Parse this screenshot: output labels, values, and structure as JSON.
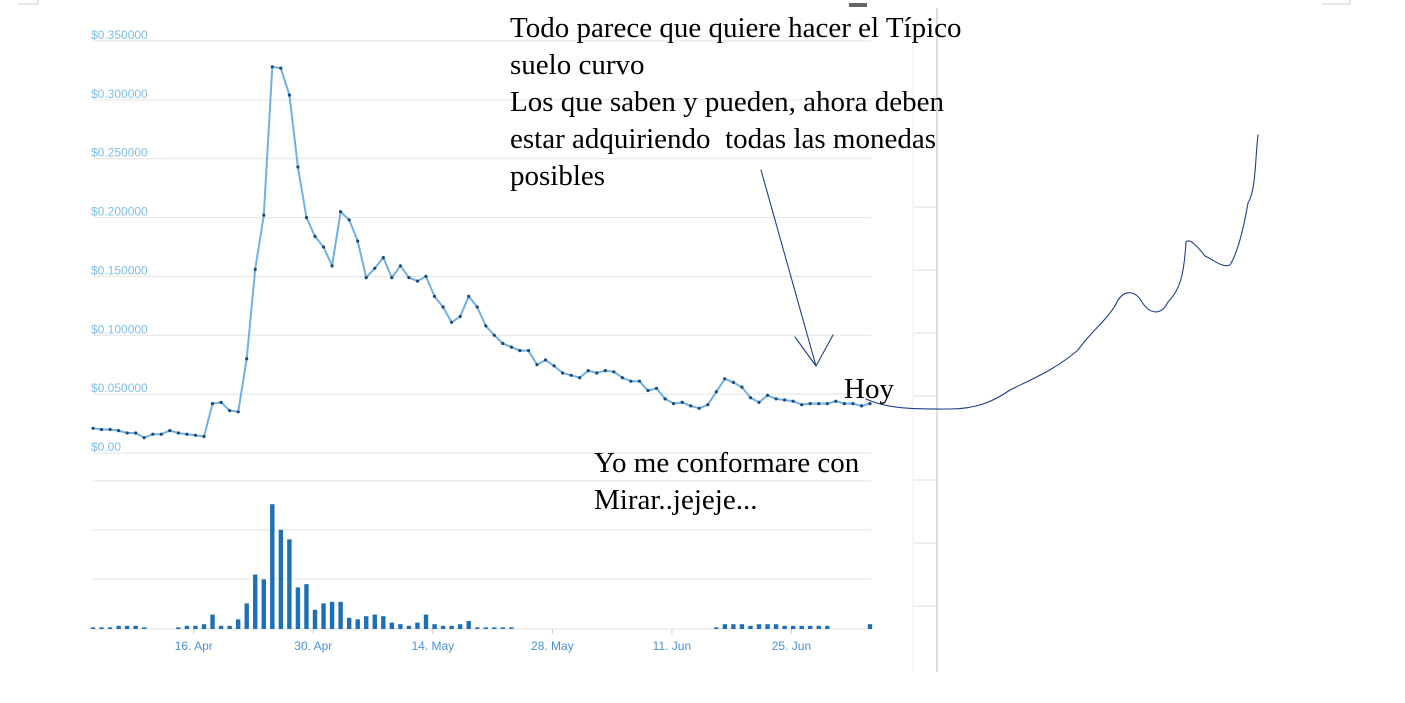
{
  "chart_data": {
    "type": "line",
    "y_ticks": [
      "$0.350000",
      "$0.300000",
      "$0.250000",
      "$0.200000",
      "$0.150000",
      "$0.100000",
      "$0.050000",
      "$0.00"
    ],
    "ylim": [
      0,
      0.35
    ],
    "x_ticks": [
      "16. Apr",
      "30. Apr",
      "14. May",
      "28. May",
      "11. Jun",
      "25. Jun"
    ],
    "grid": true,
    "price": [
      0.021,
      0.02,
      0.02,
      0.019,
      0.017,
      0.017,
      0.013,
      0.016,
      0.016,
      0.019,
      0.017,
      0.016,
      0.015,
      0.014,
      0.042,
      0.043,
      0.036,
      0.035,
      0.08,
      0.156,
      0.202,
      0.328,
      0.327,
      0.304,
      0.243,
      0.2,
      0.184,
      0.175,
      0.159,
      0.205,
      0.198,
      0.18,
      0.149,
      0.157,
      0.166,
      0.149,
      0.159,
      0.149,
      0.146,
      0.15,
      0.133,
      0.124,
      0.111,
      0.116,
      0.133,
      0.124,
      0.108,
      0.1,
      0.093,
      0.09,
      0.087,
      0.087,
      0.075,
      0.079,
      0.074,
      0.068,
      0.066,
      0.064,
      0.07,
      0.068,
      0.07,
      0.069,
      0.064,
      0.061,
      0.061,
      0.053,
      0.055,
      0.046,
      0.042,
      0.043,
      0.04,
      0.038,
      0.041,
      0.052,
      0.063,
      0.06,
      0.056,
      0.047,
      0.043,
      0.049,
      0.046,
      0.045,
      0.044,
      0.041,
      0.042,
      0.042,
      0.042,
      0.044,
      0.042,
      0.042,
      0.04,
      0.042
    ],
    "volume": [
      1,
      1,
      1,
      2,
      2,
      2,
      1,
      0,
      0,
      0,
      1,
      2,
      2,
      3,
      9,
      2,
      2,
      6,
      16,
      34,
      31,
      78,
      62,
      56,
      26,
      28,
      12,
      16,
      17,
      17,
      7,
      6,
      8,
      9,
      8,
      4,
      3,
      2,
      4,
      9,
      3,
      2,
      2,
      3,
      5,
      1,
      1,
      1,
      1,
      1,
      0,
      0,
      0,
      0,
      0,
      0,
      0,
      0,
      0,
      0,
      0,
      0,
      0,
      0,
      0,
      0,
      0,
      0,
      0,
      0,
      0,
      0,
      0,
      1,
      3,
      3,
      3,
      2,
      3,
      3,
      3,
      2,
      2,
      2,
      2,
      2,
      2,
      0,
      0,
      0,
      0,
      3
    ],
    "volume_max": 80,
    "colors": {
      "line": "#6fb0e6",
      "point": "#1a4a7a",
      "bar": "#1e6fb5",
      "grid": "#e3e3e3",
      "ink": "#1f3f8c"
    }
  },
  "annotations": {
    "top_note": "Todo parece que quiere hacer el Típico\nsuelo curvo\nLos que saben y pueden, ahora deben\nestar adquiriendo  todas las monedas\nposibles",
    "hoy": "Hoy",
    "bottom_note": "Yo me conformare con\nMirar..jejeje..."
  }
}
